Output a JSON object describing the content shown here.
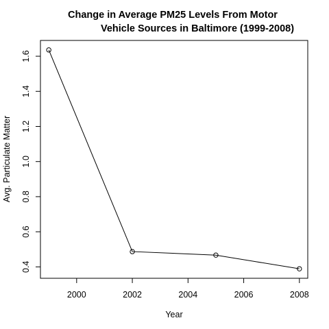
{
  "chart_data": {
    "type": "line",
    "title_lines": [
      "Change in Average PM25 Levels From Motor",
      "Vehicle Sources in Baltimore (1999-2008)"
    ],
    "xlabel": "Year",
    "ylabel": "Avg. Particulate Matter",
    "x": [
      1999,
      2002,
      2005,
      2008
    ],
    "y": [
      1.636,
      0.487,
      0.467,
      0.389
    ],
    "xlim": [
      1998.7,
      2008.3
    ],
    "ylim": [
      0.335,
      1.69
    ],
    "x_ticks": [
      2000,
      2002,
      2004,
      2006,
      2008
    ],
    "y_ticks": [
      0.4,
      0.6,
      0.8,
      1.0,
      1.2,
      1.4,
      1.6
    ],
    "x_tick_labels": [
      "2000",
      "2002",
      "2004",
      "2006",
      "2008"
    ],
    "y_tick_labels": [
      "0.4",
      "0.6",
      "0.8",
      "1.0",
      "1.2",
      "1.4",
      "1.6"
    ],
    "marker": "open-circle",
    "grid": false,
    "line_color": "#000000"
  }
}
